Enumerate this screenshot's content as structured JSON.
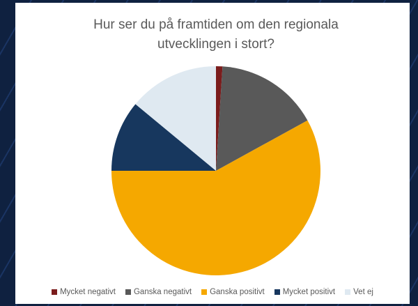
{
  "chart_data": {
    "type": "pie",
    "title": "Hur ser du på framtiden om den regionala utvecklingen i stort?",
    "categories": [
      "Mycket negativt",
      "Ganska negativt",
      "Ganska positivt",
      "Mycket positivt",
      "Vet ej"
    ],
    "values": [
      1,
      16,
      58,
      11,
      14
    ],
    "colors": [
      "#7b1c1c",
      "#595959",
      "#f5a800",
      "#17375e",
      "#dfe9f1"
    ],
    "legend": "bottom"
  }
}
